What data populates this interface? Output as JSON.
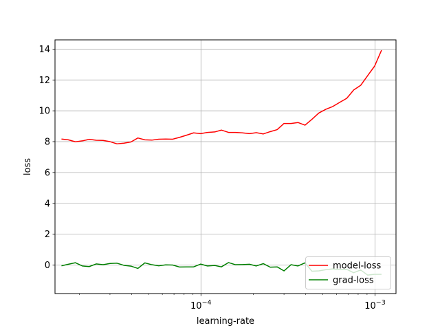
{
  "chart_data": {
    "type": "line",
    "xlabel": "learning-rate",
    "ylabel": "loss",
    "x_scale": "log",
    "xlim": [
      1.45e-05,
      0.00132
    ],
    "ylim": [
      -1.85,
      14.6
    ],
    "grid": true,
    "legend_position": "lower right",
    "x_ticks": [
      {
        "value": 0.0001,
        "base": "10",
        "exp": "−4"
      },
      {
        "value": 0.001,
        "base": "10",
        "exp": "−3"
      }
    ],
    "y_ticks": [
      {
        "value": 0,
        "label": "0"
      },
      {
        "value": 2,
        "label": "2"
      },
      {
        "value": 4,
        "label": "4"
      },
      {
        "value": 6,
        "label": "6"
      },
      {
        "value": 8,
        "label": "8"
      },
      {
        "value": 10,
        "label": "10"
      },
      {
        "value": 12,
        "label": "12"
      },
      {
        "value": 14,
        "label": "14"
      }
    ],
    "x": [
      1.58e-05,
      1.73e-05,
      1.9e-05,
      2.08e-05,
      2.28e-05,
      2.5e-05,
      2.74e-05,
      3e-05,
      3.29e-05,
      3.61e-05,
      3.96e-05,
      4.34e-05,
      4.76e-05,
      5.22e-05,
      5.72e-05,
      6.27e-05,
      6.88e-05,
      7.54e-05,
      8.27e-05,
      9.07e-05,
      9.95e-05,
      0.000109,
      0.00012,
      0.000131,
      0.000144,
      0.000158,
      0.000173,
      0.00019,
      0.000208,
      0.000228,
      0.00025,
      0.000274,
      0.0003,
      0.000329,
      0.000361,
      0.000396,
      0.000434,
      0.000476,
      0.000522,
      0.000572,
      0.000627,
      0.000688,
      0.000754,
      0.000827,
      0.000907,
      0.000995,
      0.00109
    ],
    "series": [
      {
        "name": "model-loss",
        "color": "#ff0000",
        "values": [
          8.17,
          8.12,
          7.99,
          8.05,
          8.15,
          8.09,
          8.08,
          8.0,
          7.86,
          7.9,
          7.98,
          8.24,
          8.12,
          8.1,
          8.16,
          8.17,
          8.16,
          8.28,
          8.42,
          8.57,
          8.52,
          8.6,
          8.63,
          8.75,
          8.6,
          8.6,
          8.57,
          8.52,
          8.58,
          8.5,
          8.65,
          8.78,
          9.18,
          9.18,
          9.24,
          9.07,
          9.45,
          9.86,
          10.1,
          10.28,
          10.55,
          10.81,
          11.35,
          11.65,
          12.28,
          12.9,
          13.93
        ]
      },
      {
        "name": "grad-loss",
        "color": "#008000",
        "values": [
          -0.05,
          0.05,
          0.15,
          -0.06,
          -0.1,
          0.07,
          0.02,
          0.1,
          0.12,
          -0.02,
          -0.07,
          -0.22,
          0.14,
          0.02,
          -0.05,
          0.01,
          0.0,
          -0.13,
          -0.12,
          -0.12,
          0.06,
          -0.06,
          -0.03,
          -0.12,
          0.16,
          0.02,
          0.03,
          0.05,
          -0.06,
          0.09,
          -0.14,
          -0.12,
          -0.38,
          0.02,
          -0.06,
          0.14,
          -0.4,
          -0.38,
          -0.3,
          -0.25,
          -0.3,
          -0.28,
          -0.5,
          -0.32,
          -0.65,
          -0.6,
          -0.6
        ]
      }
    ]
  }
}
